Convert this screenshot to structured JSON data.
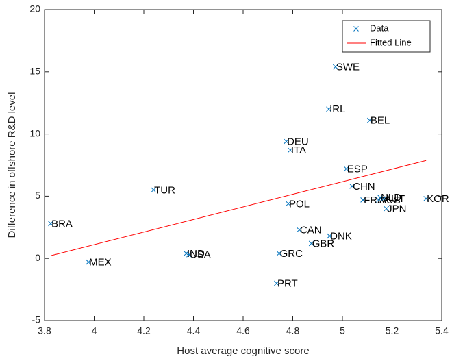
{
  "chart_data": {
    "type": "scatter",
    "xlabel": "Host average cognitive score",
    "ylabel": "Difference in offshore R&D level",
    "xlim": [
      3.8,
      5.4
    ],
    "xticks": [
      3.8,
      4,
      4.2,
      4.4,
      4.6,
      4.8,
      5,
      5.2,
      5.4
    ],
    "ylim": [
      -5,
      20
    ],
    "yticks": [
      -5,
      0,
      5,
      10,
      15,
      20
    ],
    "legend": "top-right",
    "series": [
      {
        "name": "Data",
        "color": "#0072bd",
        "labels": [
          "BRA",
          "MEX",
          "TUR",
          "IND",
          "USA",
          "POL",
          "DEU",
          "ITA",
          "CAN",
          "GRC",
          "PRT",
          "GBR",
          "DNK",
          "IRL",
          "SWE",
          "ESP",
          "BEL",
          "CHN",
          "FRA",
          "NLD",
          "AUT",
          "AUS",
          "JPN",
          "KOR"
        ],
        "x": [
          3.825,
          3.977,
          4.239,
          4.371,
          4.382,
          4.782,
          4.774,
          4.79,
          4.826,
          4.745,
          4.735,
          4.875,
          4.948,
          4.945,
          4.972,
          5.016,
          5.11,
          5.039,
          5.083,
          5.152,
          5.166,
          5.146,
          5.177,
          5.337
        ],
        "values": [
          2.8,
          -0.3,
          5.5,
          0.4,
          0.3,
          4.4,
          9.4,
          8.7,
          2.3,
          0.4,
          -2.0,
          1.2,
          1.8,
          12.0,
          15.4,
          7.2,
          11.1,
          5.8,
          4.7,
          4.9,
          4.8,
          4.7,
          4.0,
          4.8
        ]
      },
      {
        "name": "Fitted Line",
        "color": "#ff0000",
        "type": "line",
        "x": [
          3.825,
          5.337
        ],
        "values": [
          0.22,
          7.87
        ]
      }
    ]
  }
}
